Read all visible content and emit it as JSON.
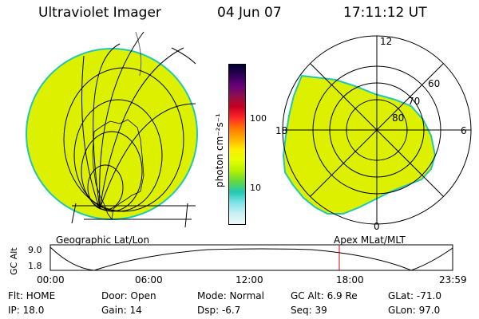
{
  "header": {
    "instrument": "Ultraviolet Imager",
    "date": "04 Jun 07",
    "time": "17:11:12 UT"
  },
  "colorbar": {
    "unit_label": "photon cm⁻²s⁻¹",
    "tick_100": "100",
    "tick_10": "10",
    "colors": [
      "#000030",
      "#300058",
      "#6a007a",
      "#90104e",
      "#c80020",
      "#ff2828",
      "#ff7800",
      "#ffb000",
      "#ffee00",
      "#e4ff00",
      "#b4f000",
      "#60d840",
      "#20c8b4",
      "#80e4e8",
      "#c8f0f4",
      "#eef8fa"
    ]
  },
  "right_plot": {
    "labels": {
      "top": "12",
      "left": "18",
      "right": "6",
      "bottom": "0"
    },
    "latitudes": {
      "l60": "60",
      "l70": "70",
      "l80": "80"
    }
  },
  "timeline": {
    "left_title": "Geographic Lat/Lon",
    "right_title": "Apex  MLat/MLT",
    "ylabel": "GC Alt",
    "ytick_top": "9.0",
    "ytick_bottom": "1.8",
    "xticks": [
      "00:00",
      "06:00",
      "12:00",
      "18:00",
      "23:59"
    ],
    "marker_color": "#e00000"
  },
  "footer": {
    "flt": "Flt: HOME",
    "ip": "IP: 18.0",
    "door": "Door: Open",
    "gain": "Gain: 14",
    "mode": "Mode: Normal",
    "dsp": "Dsp:   -6.7",
    "gcalt": "GC Alt: 6.9 Re",
    "seq": "Seq: 39",
    "glat": "GLat:  -71.0",
    "glon": "GLon:  97.0"
  },
  "colors": {
    "disk_fill": "#dcf000",
    "disk_edge": "#20c8b4"
  }
}
